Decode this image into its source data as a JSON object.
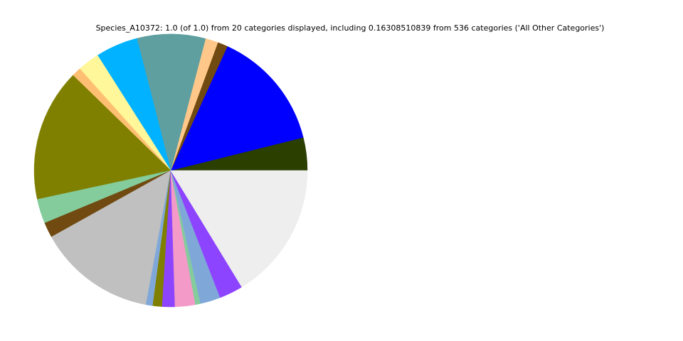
{
  "chart_data": {
    "type": "pie",
    "title": "Species_A10372: 1.0 (of 1.0) from 20 categories displayed, including 0.16308510839 from 536 categories ('All Other Categories')",
    "values": [
      0.039,
      0.143,
      0.012,
      0.015,
      0.081,
      0.05,
      0.026,
      0.011,
      0.157,
      0.029,
      0.018,
      0.14,
      0.008,
      0.011,
      0.015,
      0.024,
      0.006,
      0.024,
      0.028,
      0.163
    ],
    "colors": [
      "#2a3f00",
      "#0000ff",
      "#704a10",
      "#ffc88a",
      "#5f9f9f",
      "#00b2ff",
      "#fff799",
      "#ffbf72",
      "#808000",
      "#84cc9b",
      "#704a10",
      "#c0c0c0",
      "#7fa8d9",
      "#808000",
      "#8c44ff",
      "#f49ac8",
      "#84cc9b",
      "#7fa8d9",
      "#8c44ff",
      "#eeeeee"
    ]
  }
}
